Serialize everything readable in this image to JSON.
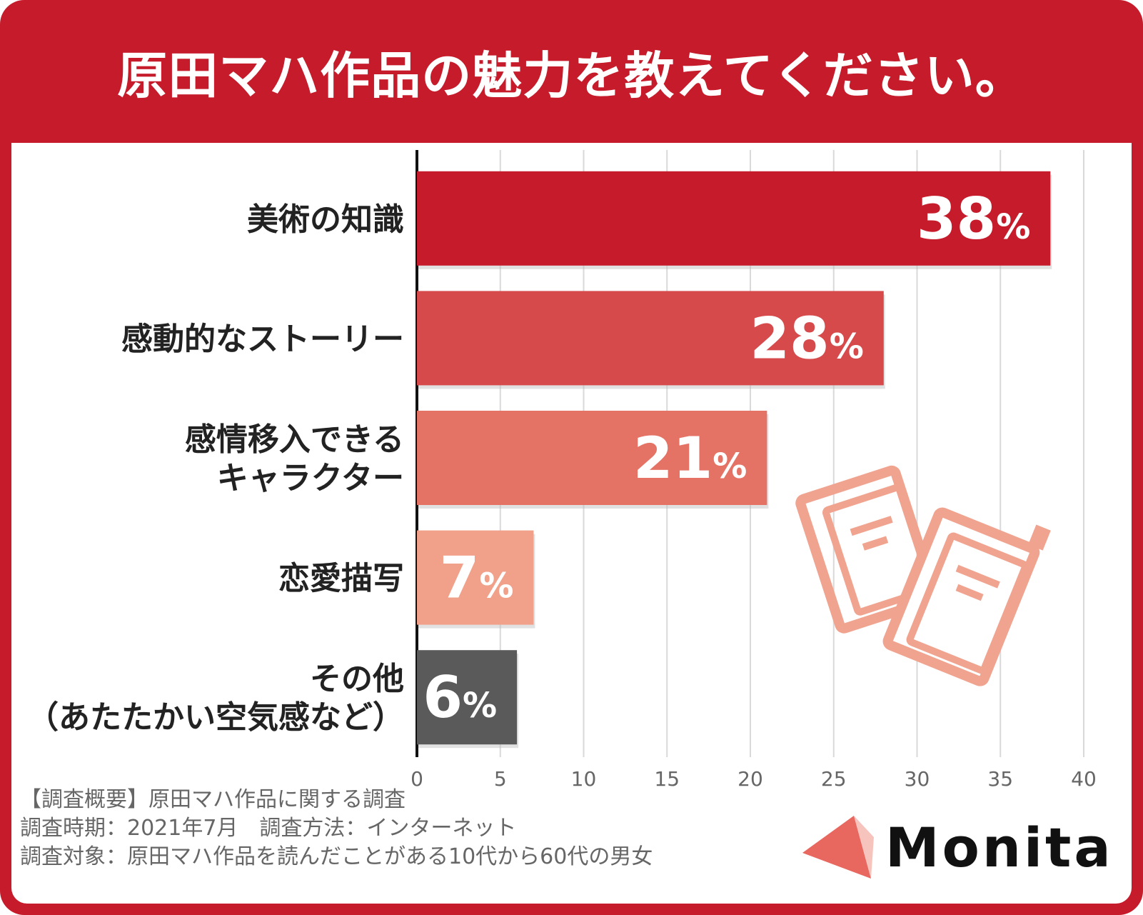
{
  "chart_data": {
    "type": "bar",
    "orientation": "horizontal",
    "title": "原田マハ作品の魅力を教えてください。",
    "categories": [
      [
        "美術の知識"
      ],
      [
        "感動的なストーリー"
      ],
      [
        "感情移入できる",
        "キャラクター"
      ],
      [
        "恋愛描写"
      ],
      [
        "その他",
        "（あたたかい空気感など）"
      ]
    ],
    "values": [
      38,
      28,
      21,
      7,
      6
    ],
    "value_labels": [
      "38",
      "28",
      "21",
      "7",
      "6"
    ],
    "value_unit": "%",
    "bar_colors": [
      "#c51b2b",
      "#d64a4c",
      "#e47366",
      "#f1a08a",
      "#5a5a5a"
    ],
    "xlim": [
      0,
      40
    ],
    "xticks": [
      0,
      5,
      10,
      15,
      20,
      25,
      30,
      35,
      40
    ],
    "grid": true,
    "xlabel": "",
    "ylabel": ""
  },
  "notes": [
    "【調査概要】原田マハ作品に関する調査",
    "調査時期：2021年7月　調査方法：インターネット",
    "調査対象：原田マハ作品を読んだことがある10代から60代の男女"
  ],
  "brand": {
    "name": "Monita",
    "accent_color": "#e8675f",
    "mark_icon": "triangle-logo-icon"
  },
  "illustration": {
    "icon": "books-icon",
    "color": "#f0a38f"
  }
}
